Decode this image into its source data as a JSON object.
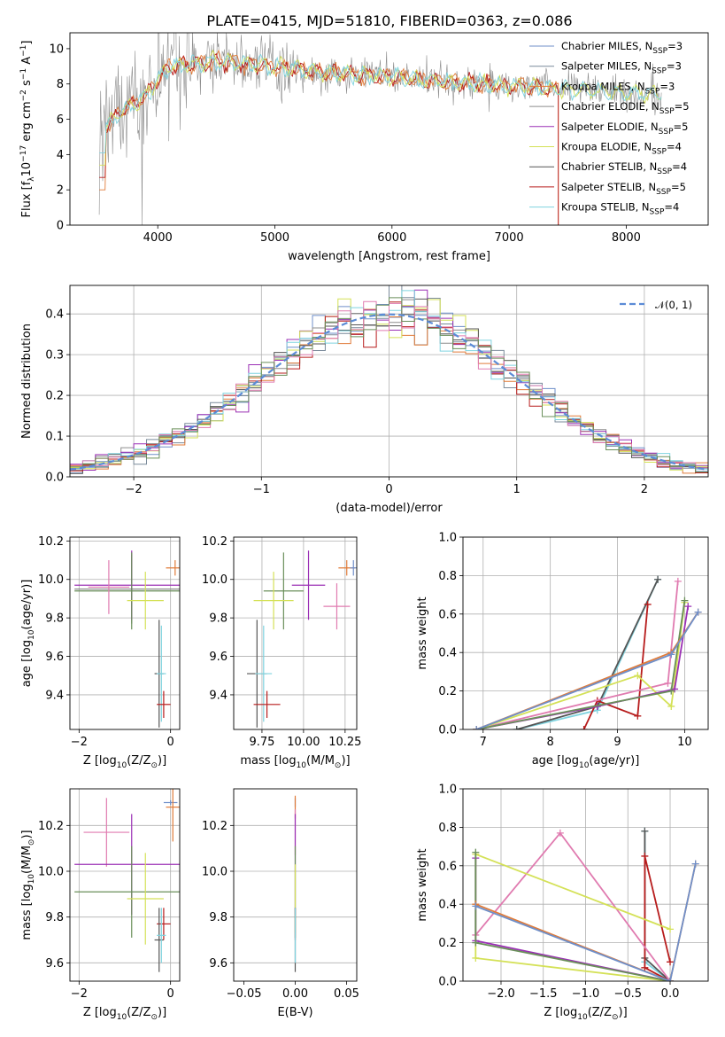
{
  "figure": {
    "title": "PLATE=0415, MJD=51810, FIBERID=0363, z=0.086"
  },
  "colors": {
    "chabrier_miles": "#6f8fc9",
    "salpeter_miles": "#7a8a9a",
    "kroupa_miles": "#e07b39",
    "chabrier_elodie": "#8c8c8c",
    "salpeter_elodie": "#9b30b5",
    "kroupa_elodie": "#d4e157",
    "chabrier_stelib": "#555555",
    "salpeter_stelib": "#b71c1c",
    "kroupa_stelib": "#7fd3df",
    "pink": "#e07bb0",
    "green": "#6a8f5a",
    "gaussian": "#5b8bd6",
    "grid": "#b0b0b0"
  },
  "chart_data": [
    {
      "id": "spectrum",
      "type": "line",
      "title": "PLATE=0415, MJD=51810, FIBERID=0363, z=0.086",
      "xlabel": "wavelength [Angstrom, rest frame]",
      "ylabel_parts": [
        "Flux [f",
        "λ",
        "10",
        "−17",
        " erg cm",
        "−2",
        " s",
        "−1",
        " A",
        "−1",
        "]"
      ],
      "xlim": [
        3250,
        8700
      ],
      "ylim": [
        0,
        10.9
      ],
      "xticks": [
        "4000",
        "5000",
        "6000",
        "7000",
        "8000"
      ],
      "xtick_values": [
        4000,
        5000,
        6000,
        7000,
        8000
      ],
      "yticks": [
        "0",
        "2",
        "4",
        "6",
        "8",
        "10"
      ],
      "ytick_values": [
        0,
        2,
        4,
        6,
        8,
        10
      ],
      "legend": [
        {
          "label": "Chabrier MILES, N",
          "sub": "SSP",
          "suffix": "=3",
          "color": "chabrier_miles"
        },
        {
          "label": "Salpeter MILES, N",
          "sub": "SSP",
          "suffix": "=3",
          "color": "salpeter_miles"
        },
        {
          "label": "Kroupa MILES, N",
          "sub": "SSP",
          "suffix": "=3",
          "color": "kroupa_miles"
        },
        {
          "label": "Chabrier ELODIE, N",
          "sub": "SSP",
          "suffix": "=5",
          "color": "chabrier_elodie"
        },
        {
          "label": "Salpeter ELODIE, N",
          "sub": "SSP",
          "suffix": "=5",
          "color": "salpeter_elodie"
        },
        {
          "label": "Kroupa ELODIE, N",
          "sub": "SSP",
          "suffix": "=4",
          "color": "kroupa_elodie"
        },
        {
          "label": "Chabrier STELIB, N",
          "sub": "SSP",
          "suffix": "=4",
          "color": "chabrier_stelib"
        },
        {
          "label": "Salpeter STELIB, N",
          "sub": "SSP",
          "suffix": "=5",
          "color": "salpeter_stelib"
        },
        {
          "label": "Kroupa STELIB, N",
          "sub": "SSP",
          "suffix": "=4",
          "color": "kroupa_stelib"
        }
      ],
      "data_wavelength_range": [
        3500,
        8300
      ],
      "continuum": [
        [
          3500,
          5.2
        ],
        [
          3700,
          6.5
        ],
        [
          3900,
          7.4
        ],
        [
          4100,
          9.0
        ],
        [
          4500,
          9.3
        ],
        [
          5000,
          9.0
        ],
        [
          5500,
          8.6
        ],
        [
          6000,
          8.4
        ],
        [
          6500,
          8.1
        ],
        [
          7000,
          7.9
        ],
        [
          7500,
          7.7
        ],
        [
          8000,
          7.5
        ],
        [
          8300,
          7.4
        ]
      ]
    },
    {
      "id": "residuals",
      "type": "histogram",
      "xlabel": "(data-model)/error",
      "ylabel": "Normed distribution",
      "xlim": [
        -2.5,
        2.5
      ],
      "ylim": [
        0,
        0.47
      ],
      "xticks": [
        "−2",
        "−1",
        "0",
        "1",
        "2"
      ],
      "xtick_values": [
        -2,
        -1,
        0,
        1,
        2
      ],
      "yticks": [
        "0.0",
        "0.1",
        "0.2",
        "0.3",
        "0.4"
      ],
      "ytick_values": [
        0,
        0.1,
        0.2,
        0.3,
        0.4
      ],
      "legend": [
        {
          "label": "𝒩(0, 1)",
          "color": "gaussian",
          "style": "dashed"
        }
      ],
      "bins": 50,
      "gaussian": {
        "mean": 0,
        "sigma": 1
      }
    },
    {
      "id": "z-vs-age",
      "type": "errorbar",
      "xlabel_parts": [
        "Z [log",
        "10",
        "(Z/Z",
        "⊙",
        ")]"
      ],
      "ylabel_parts": [
        "age  [log",
        "10",
        "(age/yr)]"
      ],
      "xlim": [
        -2.2,
        0.2
      ],
      "ylim": [
        9.22,
        10.22
      ],
      "xticks": [
        "−2",
        "0"
      ],
      "xtick_values": [
        -2,
        0
      ],
      "yticks": [
        "9.4",
        "9.6",
        "9.8",
        "10.0",
        "10.2"
      ],
      "ytick_values": [
        9.4,
        9.6,
        9.8,
        10.0,
        10.2
      ],
      "points": [
        {
          "x": -0.85,
          "y": 9.95,
          "xerr": 1.25,
          "yerr": 0.18,
          "color": "chabrier_elodie"
        },
        {
          "x": -0.85,
          "y": 9.97,
          "xerr": 1.25,
          "yerr": 0.18,
          "color": "salpeter_elodie"
        },
        {
          "x": -0.85,
          "y": 9.94,
          "xerr": 1.25,
          "yerr": 0.2,
          "color": "green"
        },
        {
          "x": -1.35,
          "y": 9.96,
          "xerr": 0.45,
          "yerr": 0.14,
          "color": "pink"
        },
        {
          "x": -0.55,
          "y": 9.89,
          "xerr": 0.4,
          "yerr": 0.15,
          "color": "kroupa_elodie"
        },
        {
          "x": 0.1,
          "y": 10.06,
          "xerr": 0.2,
          "yerr": 0.04,
          "color": "kroupa_miles"
        },
        {
          "x": -0.25,
          "y": 9.51,
          "xerr": 0.1,
          "yerr": 0.28,
          "color": "chabrier_stelib"
        },
        {
          "x": -0.2,
          "y": 9.51,
          "xerr": 0.1,
          "yerr": 0.25,
          "color": "kroupa_stelib"
        },
        {
          "x": -0.15,
          "y": 9.35,
          "xerr": 0.15,
          "yerr": 0.07,
          "color": "salpeter_stelib"
        }
      ]
    },
    {
      "id": "mass-vs-age",
      "type": "errorbar",
      "xlabel_parts": [
        "mass [log",
        "10",
        "(M/M",
        "⊙",
        ")]"
      ],
      "ylabel_parts": [],
      "xlim": [
        9.58,
        10.32
      ],
      "ylim": [
        9.22,
        10.22
      ],
      "xticks": [
        "9.75",
        "10.00",
        "10.25"
      ],
      "xtick_values": [
        9.75,
        10.0,
        10.25
      ],
      "yticks": [
        "9.4",
        "9.6",
        "9.8",
        "10.0",
        "10.2"
      ],
      "ytick_values": [
        9.4,
        9.6,
        9.8,
        10.0,
        10.2
      ],
      "points": [
        {
          "x": 10.26,
          "y": 10.06,
          "xerr": 0.05,
          "yerr": 0.04,
          "color": "kroupa_miles"
        },
        {
          "x": 10.3,
          "y": 10.06,
          "xerr": 0.02,
          "yerr": 0.04,
          "color": "chabrier_miles"
        },
        {
          "x": 10.2,
          "y": 9.86,
          "xerr": 0.08,
          "yerr": 0.12,
          "color": "pink"
        },
        {
          "x": 10.03,
          "y": 9.97,
          "xerr": 0.1,
          "yerr": 0.18,
          "color": "salpeter_elodie"
        },
        {
          "x": 9.88,
          "y": 9.94,
          "xerr": 0.12,
          "yerr": 0.2,
          "color": "green"
        },
        {
          "x": 9.82,
          "y": 9.89,
          "xerr": 0.12,
          "yerr": 0.15,
          "color": "kroupa_elodie"
        },
        {
          "x": 9.72,
          "y": 9.51,
          "xerr": 0.06,
          "yerr": 0.28,
          "color": "chabrier_stelib"
        },
        {
          "x": 9.76,
          "y": 9.51,
          "xerr": 0.05,
          "yerr": 0.25,
          "color": "kroupa_stelib"
        },
        {
          "x": 9.78,
          "y": 9.35,
          "xerr": 0.08,
          "yerr": 0.07,
          "color": "salpeter_stelib"
        }
      ]
    },
    {
      "id": "age-vs-weight",
      "type": "line",
      "xlabel_parts": [
        "age  [log",
        "10",
        "(age/yr)]"
      ],
      "ylabel": "mass weight",
      "xlim": [
        6.7,
        10.35
      ],
      "ylim": [
        0,
        1
      ],
      "xticks": [
        "7",
        "8",
        "9",
        "10"
      ],
      "xtick_values": [
        7,
        8,
        9,
        10
      ],
      "yticks": [
        "0.0",
        "0.2",
        "0.4",
        "0.6",
        "0.8",
        "1.0"
      ],
      "ytick_values": [
        0,
        0.2,
        0.4,
        0.6,
        0.8,
        1.0
      ],
      "series": [
        {
          "color": "kroupa_stelib",
          "x": [
            7.5,
            8.7,
            9.6
          ],
          "y": [
            0.0,
            0.1,
            0.78
          ]
        },
        {
          "color": "chabrier_stelib",
          "x": [
            7.5,
            8.7,
            9.6
          ],
          "y": [
            0.0,
            0.12,
            0.78
          ]
        },
        {
          "color": "salpeter_stelib",
          "x": [
            8.5,
            8.7,
            9.3,
            9.45
          ],
          "y": [
            0.0,
            0.15,
            0.07,
            0.65
          ]
        },
        {
          "color": "pink",
          "x": [
            6.9,
            9.75,
            9.9
          ],
          "y": [
            0.0,
            0.24,
            0.77
          ]
        },
        {
          "color": "kroupa_elodie",
          "x": [
            6.9,
            9.3,
            9.8,
            10.0
          ],
          "y": [
            0.0,
            0.28,
            0.12,
            0.66
          ]
        },
        {
          "color": "salpeter_elodie",
          "x": [
            6.9,
            8.7,
            9.85,
            10.05
          ],
          "y": [
            0.0,
            0.12,
            0.21,
            0.64
          ]
        },
        {
          "color": "green",
          "x": [
            6.9,
            9.8,
            10.0
          ],
          "y": [
            0.0,
            0.2,
            0.67
          ]
        },
        {
          "color": "kroupa_miles",
          "x": [
            6.9,
            9.8,
            10.2
          ],
          "y": [
            0.0,
            0.4,
            0.61
          ]
        },
        {
          "color": "chabrier_miles",
          "x": [
            6.9,
            9.8,
            10.2
          ],
          "y": [
            0.0,
            0.39,
            0.61
          ]
        }
      ]
    },
    {
      "id": "z-vs-mass",
      "type": "errorbar",
      "xlabel_parts": [
        "Z [log",
        "10",
        "(Z/Z",
        "⊙",
        ")]"
      ],
      "ylabel_parts": [
        "mass [log",
        "10",
        "(M/M",
        "⊙",
        ")]"
      ],
      "xlim": [
        -2.2,
        0.2
      ],
      "ylim": [
        9.52,
        10.36
      ],
      "xticks": [
        "−2",
        "0"
      ],
      "xtick_values": [
        -2,
        0
      ],
      "yticks": [
        "9.6",
        "9.8",
        "10.0",
        "10.2"
      ],
      "ytick_values": [
        9.6,
        9.8,
        10.0,
        10.2
      ],
      "points": [
        {
          "x": 0.0,
          "y": 10.3,
          "xerr": 0.15,
          "yerr": 0.01,
          "color": "chabrier_miles"
        },
        {
          "x": 0.05,
          "y": 10.28,
          "xerr": 0.15,
          "yerr": 0.15,
          "color": "kroupa_miles"
        },
        {
          "x": -1.4,
          "y": 10.17,
          "xerr": 0.5,
          "yerr": 0.15,
          "color": "pink"
        },
        {
          "x": -0.85,
          "y": 10.03,
          "xerr": 1.25,
          "yerr": 0.22,
          "color": "salpeter_elodie"
        },
        {
          "x": -0.85,
          "y": 9.91,
          "xerr": 1.25,
          "yerr": 0.2,
          "color": "green"
        },
        {
          "x": -0.55,
          "y": 9.88,
          "xerr": 0.4,
          "yerr": 0.2,
          "color": "kroupa_elodie"
        },
        {
          "x": -0.15,
          "y": 9.77,
          "xerr": 0.15,
          "yerr": 0.07,
          "color": "salpeter_stelib"
        },
        {
          "x": -0.25,
          "y": 9.7,
          "xerr": 0.1,
          "yerr": 0.14,
          "color": "chabrier_stelib"
        },
        {
          "x": -0.2,
          "y": 9.72,
          "xerr": 0.1,
          "yerr": 0.12,
          "color": "kroupa_stelib"
        }
      ]
    },
    {
      "id": "ebv-vs-mass",
      "type": "errorbar",
      "xlabel": "E(B-V)",
      "xlim": [
        -0.06,
        0.06
      ],
      "ylim": [
        9.52,
        10.36
      ],
      "xticks": [
        "−0.05",
        "0.00",
        "0.05"
      ],
      "xtick_values": [
        -0.05,
        0.0,
        0.05
      ],
      "yticks": [
        "9.6",
        "9.8",
        "10.0",
        "10.2"
      ],
      "ytick_values": [
        9.6,
        9.8,
        10.0,
        10.2
      ],
      "points": [
        {
          "x": 0.0,
          "y": 10.3,
          "xerr": 0.0,
          "yerr": 0.02,
          "color": "chabrier_miles"
        },
        {
          "x": 0.0,
          "y": 10.28,
          "xerr": 0.0,
          "yerr": 0.05,
          "color": "kroupa_miles"
        },
        {
          "x": 0.0,
          "y": 10.17,
          "xerr": 0.0,
          "yerr": 0.1,
          "color": "pink"
        },
        {
          "x": 0.0,
          "y": 10.03,
          "xerr": 0.0,
          "yerr": 0.22,
          "color": "salpeter_elodie"
        },
        {
          "x": 0.0,
          "y": 9.91,
          "xerr": 0.0,
          "yerr": 0.2,
          "color": "green"
        },
        {
          "x": 0.0,
          "y": 9.88,
          "xerr": 0.0,
          "yerr": 0.15,
          "color": "kroupa_elodie"
        },
        {
          "x": 0.0,
          "y": 9.77,
          "xerr": 0.0,
          "yerr": 0.07,
          "color": "salpeter_stelib"
        },
        {
          "x": 0.0,
          "y": 9.7,
          "xerr": 0.0,
          "yerr": 0.14,
          "color": "chabrier_stelib"
        },
        {
          "x": 0.0,
          "y": 9.72,
          "xerr": 0.0,
          "yerr": 0.12,
          "color": "kroupa_stelib"
        }
      ]
    },
    {
      "id": "z-vs-weight",
      "type": "line",
      "xlabel_parts": [
        "Z [log",
        "10",
        "(Z/Z",
        "⊙",
        ")]"
      ],
      "ylabel": "mass weight",
      "xlim": [
        -2.45,
        0.45
      ],
      "ylim": [
        0,
        1
      ],
      "xticks": [
        "−2.0",
        "−1.5",
        "−1.0",
        "−0.5",
        "0.0"
      ],
      "xtick_values": [
        -2.0,
        -1.5,
        -1.0,
        -0.5,
        0.0
      ],
      "yticks": [
        "0.0",
        "0.2",
        "0.4",
        "0.6",
        "0.8",
        "1.0"
      ],
      "ytick_values": [
        0,
        0.2,
        0.4,
        0.6,
        0.8,
        1.0
      ],
      "series": [
        {
          "color": "kroupa_stelib",
          "x": [
            0.0,
            -0.3,
            -0.3
          ],
          "y": [
            0.0,
            0.1,
            0.78
          ]
        },
        {
          "color": "chabrier_stelib",
          "x": [
            0.0,
            -0.3,
            -0.3
          ],
          "y": [
            0.0,
            0.12,
            0.78
          ]
        },
        {
          "color": "salpeter_stelib",
          "x": [
            0.0,
            -0.3,
            -0.3,
            0.0
          ],
          "y": [
            0.0,
            0.07,
            0.65,
            0.1
          ]
        },
        {
          "color": "pink",
          "x": [
            0.0,
            -1.3,
            -2.3
          ],
          "y": [
            0.0,
            0.77,
            0.24
          ]
        },
        {
          "color": "kroupa_elodie",
          "x": [
            0.0,
            -2.3,
            -2.3,
            0.0
          ],
          "y": [
            0.0,
            0.12,
            0.66,
            0.27
          ]
        },
        {
          "color": "salpeter_elodie",
          "x": [
            0.0,
            -2.3,
            -2.3
          ],
          "y": [
            0.0,
            0.21,
            0.64
          ]
        },
        {
          "color": "green",
          "x": [
            0.0,
            -2.3,
            -2.3
          ],
          "y": [
            0.0,
            0.2,
            0.67
          ]
        },
        {
          "color": "kroupa_miles",
          "x": [
            -2.3,
            0.0,
            0.3
          ],
          "y": [
            0.4,
            0.0,
            0.61
          ]
        },
        {
          "color": "chabrier_miles",
          "x": [
            -2.3,
            0.0,
            0.3
          ],
          "y": [
            0.39,
            0.0,
            0.61
          ]
        }
      ]
    }
  ]
}
